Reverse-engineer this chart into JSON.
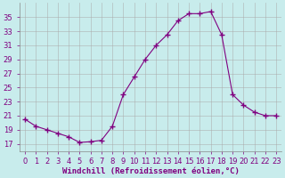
{
  "x": [
    0,
    1,
    2,
    3,
    4,
    5,
    6,
    7,
    8,
    9,
    10,
    11,
    12,
    13,
    14,
    15,
    16,
    17,
    18,
    19,
    20,
    21,
    22,
    23
  ],
  "y": [
    20.5,
    19.5,
    19.0,
    18.5,
    18.0,
    17.2,
    17.3,
    17.5,
    19.5,
    24.0,
    26.5,
    29.0,
    31.0,
    32.5,
    34.5,
    35.5,
    35.5,
    35.8,
    32.5,
    24.0,
    22.5,
    21.5,
    21.0,
    21.0
  ],
  "line_color": "#800080",
  "marker": "+",
  "marker_size": 4,
  "xlabel": "Windchill (Refroidissement éolien,°C)",
  "ylabel_ticks": [
    17,
    19,
    21,
    23,
    25,
    27,
    29,
    31,
    33,
    35
  ],
  "ylim": [
    16.0,
    37.0
  ],
  "xlim": [
    -0.5,
    23.5
  ],
  "bg_color": "#c8ecec",
  "grid_color": "#aaaaaa",
  "tick_color": "#800080",
  "label_color": "#800080",
  "xlabel_fontsize": 6.5,
  "tick_fontsize": 6.0,
  "lw": 0.8
}
